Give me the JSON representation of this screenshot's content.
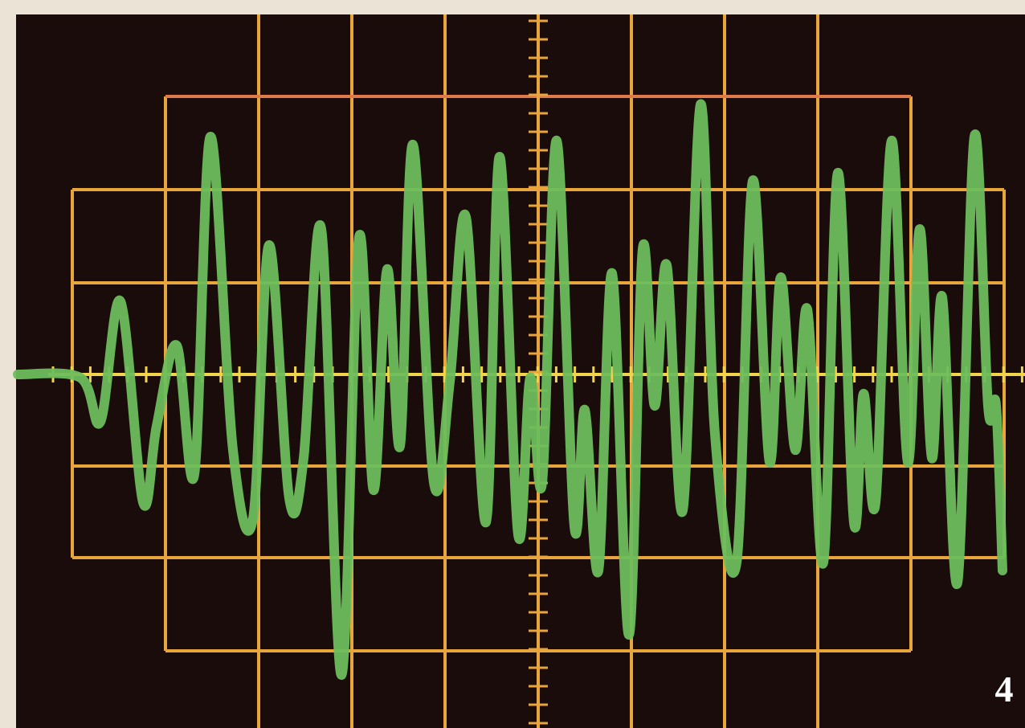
{
  "screen": {
    "label": "4"
  }
}
